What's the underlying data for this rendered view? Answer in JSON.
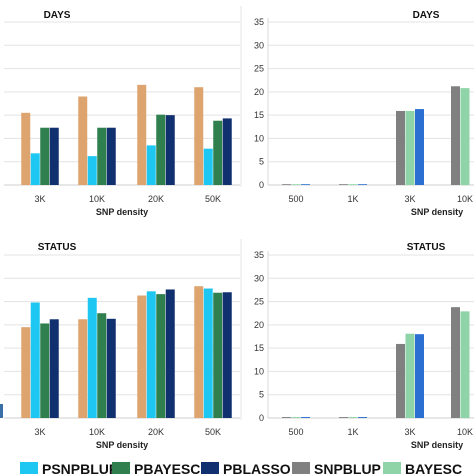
{
  "legend": [
    {
      "label": "PSNPBLUP",
      "color": "#1ec7f2"
    },
    {
      "label": "PBAYESC",
      "color": "#2f7f4f"
    },
    {
      "label": "PBLASSO",
      "color": "#11306f"
    },
    {
      "label": "SNPBLUP",
      "color": "#808080"
    },
    {
      "label": "BAYESC",
      "color": "#8fd3a8"
    }
  ],
  "chart_data": [
    {
      "type": "bar",
      "title": "DAYS",
      "xlabel": "SNP density",
      "categories": [
        "3K",
        "10K",
        "20K",
        "50K"
      ],
      "series": [
        {
          "name": "",
          "color": "#dda46f",
          "values": [
            15.5,
            19,
            21.5,
            21
          ]
        },
        {
          "name": "PSNPBLUP",
          "color": "#1ec7f2",
          "values": [
            6.8,
            6.2,
            8.5,
            7.8
          ]
        },
        {
          "name": "PBAYESC",
          "color": "#2f7f4f",
          "values": [
            12.3,
            12.3,
            15.1,
            13.8
          ]
        },
        {
          "name": "PBLASSO",
          "color": "#11306f",
          "values": [
            12.3,
            12.3,
            15.0,
            14.3
          ]
        }
      ],
      "ylim": [
        0,
        35
      ]
    },
    {
      "type": "bar",
      "title": "DAYS",
      "xlabel": "SNP density",
      "categories": [
        "500",
        "1K",
        "3K",
        "10K"
      ],
      "yticks": [
        "0",
        "5",
        "10",
        "15",
        "20",
        "25",
        "30",
        "35"
      ],
      "series": [
        {
          "name": "SNPBLUP",
          "color": "#808080",
          "values": [
            0,
            0,
            15.9,
            21.2
          ]
        },
        {
          "name": "BAYESC",
          "color": "#8fd3a8",
          "values": [
            0,
            0,
            15.9,
            20.8
          ]
        },
        {
          "name": "",
          "color": "#2a6fd1",
          "values": [
            0,
            0,
            16.3,
            null
          ]
        }
      ],
      "ylim": [
        0,
        35
      ]
    },
    {
      "type": "bar",
      "title": "STATUS",
      "xlabel": "SNP density",
      "categories": [
        "3K",
        "10K",
        "20K",
        "50K"
      ],
      "series": [
        {
          "name": "",
          "color": "#dda46f",
          "values": [
            19.5,
            21.2,
            26.3,
            28.3
          ]
        },
        {
          "name": "PSNPBLUP",
          "color": "#1ec7f2",
          "values": [
            24.8,
            25.8,
            27.2,
            27.8
          ]
        },
        {
          "name": "PBAYESC",
          "color": "#2f7f4f",
          "values": [
            20.3,
            22.5,
            26.6,
            26.9
          ]
        },
        {
          "name": "PBLASSO",
          "color": "#11306f",
          "values": [
            21.2,
            21.3,
            27.6,
            27.0
          ]
        }
      ],
      "ylim": [
        0,
        35
      ]
    },
    {
      "type": "bar",
      "title": "STATUS",
      "xlabel": "SNP density",
      "categories": [
        "500",
        "1K",
        "3K",
        "10K"
      ],
      "yticks": [
        "0",
        "5",
        "10",
        "15",
        "20",
        "25",
        "30",
        "35"
      ],
      "series": [
        {
          "name": "SNPBLUP",
          "color": "#808080",
          "values": [
            0.2,
            0.2,
            15.9,
            23.8
          ]
        },
        {
          "name": "BAYESC",
          "color": "#8fd3a8",
          "values": [
            0.2,
            0.2,
            18.1,
            22.9
          ]
        },
        {
          "name": "",
          "color": "#2a6fd1",
          "values": [
            0.2,
            0.2,
            18.0,
            null
          ]
        }
      ],
      "ylim": [
        0,
        35
      ]
    }
  ]
}
